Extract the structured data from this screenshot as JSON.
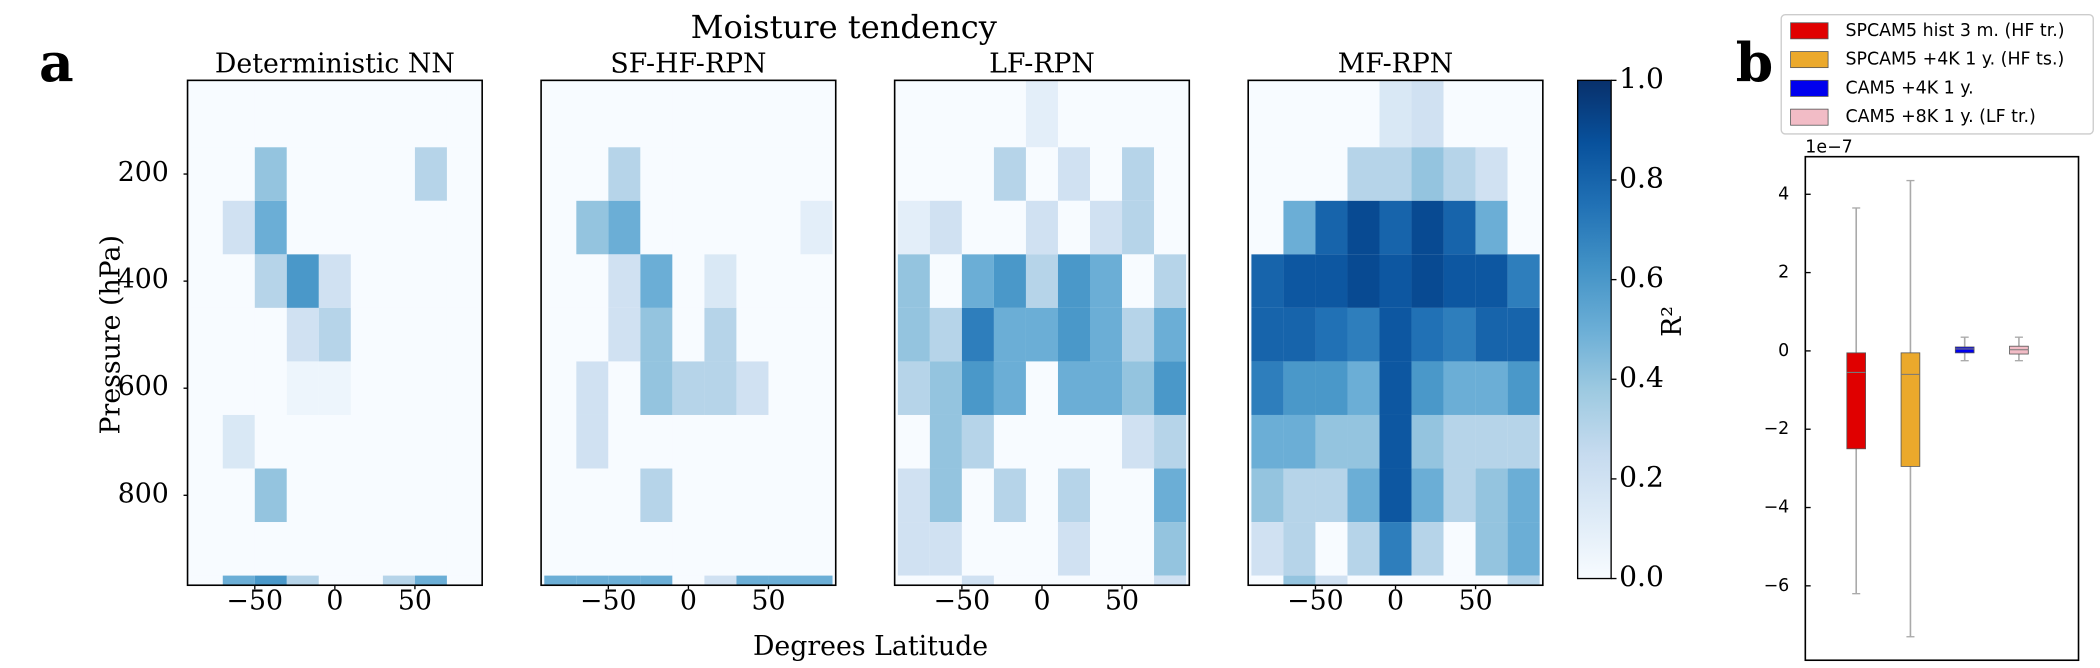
{
  "figure": {
    "title": "Moisture tendency",
    "xlabel": "Degrees Latitude",
    "ylabel": "Pressure (hPa)",
    "panel_labels": [
      "a",
      "b"
    ],
    "colorbar": {
      "label": "R²",
      "lim": [
        0,
        1
      ],
      "ticks": [
        {
          "value": 0,
          "label": "0.0"
        },
        0.2,
        0.4,
        0.6,
        0.8,
        {
          "value": 1,
          "label": "1.0"
        }
      ],
      "colormap": [
        "#f7fbff",
        "#deebf7",
        "#c6dbef",
        "#9ecae1",
        "#6baed6",
        "#4292c6",
        "#2171b5",
        "#08519c",
        "#08306b"
      ]
    }
  },
  "chart_data": [
    {
      "type": "heatmap",
      "title": "Deterministic NN",
      "xbins": [
        -90,
        -70,
        -50,
        -30,
        -10,
        10,
        30,
        50,
        70,
        90
      ],
      "ybins": [
        25,
        150,
        250,
        350,
        450,
        550,
        650,
        750,
        850,
        950,
        968
      ],
      "xlim": [
        -92,
        92
      ],
      "ylim": [
        968,
        25
      ],
      "xticks": [
        {
          "value": -50,
          "label": "−50"
        },
        0,
        50
      ],
      "yticks": [
        200,
        400,
        600,
        800
      ],
      "values": [
        [
          0,
          0,
          0,
          0,
          0,
          0,
          0,
          0,
          0
        ],
        [
          0,
          0,
          0.4,
          0,
          0,
          0,
          0,
          0.3,
          0
        ],
        [
          0,
          0.2,
          0.5,
          0,
          0,
          0,
          0,
          0,
          0
        ],
        [
          0,
          0,
          0.3,
          0.6,
          0.2,
          0,
          0,
          0,
          0
        ],
        [
          0,
          0,
          0,
          0.2,
          0.3,
          0,
          0,
          0,
          0
        ],
        [
          0,
          0,
          0,
          0.05,
          0.05,
          0,
          0,
          0,
          0
        ],
        [
          0,
          0.15,
          0,
          0,
          0,
          0,
          0,
          0,
          0
        ],
        [
          0,
          0,
          0.4,
          0,
          0,
          0,
          0,
          0,
          0
        ],
        [
          0,
          0,
          0,
          0,
          0,
          0,
          0,
          0,
          0
        ],
        [
          0,
          0.5,
          0.6,
          0.3,
          0,
          0,
          0.3,
          0.5,
          0
        ]
      ]
    },
    {
      "type": "heatmap",
      "title": "SF-HF-RPN",
      "xbins": [
        -90,
        -70,
        -50,
        -30,
        -10,
        10,
        30,
        50,
        70,
        90
      ],
      "ybins": [
        25,
        150,
        250,
        350,
        450,
        550,
        650,
        750,
        850,
        950,
        968
      ],
      "xlim": [
        -92,
        92
      ],
      "ylim": [
        968,
        25
      ],
      "xticks": [
        {
          "value": -50,
          "label": "−50"
        },
        0,
        50
      ],
      "values": [
        [
          0,
          0,
          0,
          0,
          0,
          0,
          0,
          0,
          0
        ],
        [
          0,
          0,
          0.3,
          0,
          0,
          0,
          0,
          0,
          0
        ],
        [
          0,
          0.4,
          0.5,
          0,
          0,
          0,
          0,
          0,
          0.1
        ],
        [
          0,
          0,
          0.2,
          0.5,
          0,
          0.15,
          0,
          0,
          0
        ],
        [
          0,
          0,
          0.2,
          0.4,
          0,
          0.3,
          0,
          0,
          0
        ],
        [
          0,
          0.2,
          0,
          0.4,
          0.3,
          0.3,
          0.2,
          0,
          0
        ],
        [
          0,
          0.2,
          0,
          0,
          0,
          0,
          0,
          0,
          0
        ],
        [
          0,
          0,
          0,
          0.3,
          0,
          0,
          0,
          0,
          0
        ],
        [
          0,
          0,
          0,
          0,
          0,
          0,
          0,
          0,
          0
        ],
        [
          0.5,
          0.5,
          0.5,
          0.5,
          0,
          0.2,
          0.5,
          0.5,
          0.5
        ]
      ]
    },
    {
      "type": "heatmap",
      "title": "LF-RPN",
      "xbins": [
        -90,
        -70,
        -50,
        -30,
        -10,
        10,
        30,
        50,
        70,
        90
      ],
      "ybins": [
        25,
        150,
        250,
        350,
        450,
        550,
        650,
        750,
        850,
        950,
        968
      ],
      "xlim": [
        -92,
        92
      ],
      "ylim": [
        968,
        25
      ],
      "xticks": [
        {
          "value": -50,
          "label": "−50"
        },
        0,
        50
      ],
      "values": [
        [
          0,
          0,
          0,
          0,
          0.1,
          0,
          0,
          0,
          0
        ],
        [
          0,
          0,
          0,
          0.3,
          0,
          0.2,
          0,
          0.3,
          0
        ],
        [
          0.1,
          0.2,
          0,
          0,
          0.2,
          0,
          0.2,
          0.3,
          0
        ],
        [
          0.4,
          0,
          0.5,
          0.6,
          0.3,
          0.6,
          0.5,
          0,
          0.3
        ],
        [
          0.4,
          0.3,
          0.7,
          0.5,
          0.5,
          0.6,
          0.5,
          0.3,
          0.5
        ],
        [
          0.3,
          0.4,
          0.6,
          0.5,
          0,
          0.5,
          0.5,
          0.4,
          0.6
        ],
        [
          0,
          0.4,
          0.3,
          0,
          0,
          0,
          0,
          0.2,
          0.3
        ],
        [
          0.2,
          0.4,
          0,
          0.3,
          0,
          0.3,
          0,
          0,
          0.5
        ],
        [
          0.2,
          0.2,
          0,
          0,
          0,
          0.2,
          0,
          0,
          0.4
        ],
        [
          0,
          0,
          0.2,
          0,
          0,
          0,
          0,
          0,
          0.2
        ]
      ]
    },
    {
      "type": "heatmap",
      "title": "MF-RPN",
      "xbins": [
        -90,
        -70,
        -50,
        -30,
        -10,
        10,
        30,
        50,
        70,
        90
      ],
      "ybins": [
        25,
        150,
        250,
        350,
        450,
        550,
        650,
        750,
        850,
        950,
        968
      ],
      "xlim": [
        -92,
        92
      ],
      "ylim": [
        968,
        25
      ],
      "xticks": [
        {
          "value": -50,
          "label": "−50"
        },
        0,
        50
      ],
      "values": [
        [
          0,
          0,
          0,
          0,
          0.15,
          0.2,
          0,
          0,
          0
        ],
        [
          0,
          0,
          0,
          0.3,
          0.3,
          0.4,
          0.3,
          0.2,
          0
        ],
        [
          0,
          0.5,
          0.8,
          0.9,
          0.8,
          0.9,
          0.8,
          0.5,
          0
        ],
        [
          0.8,
          0.85,
          0.85,
          0.9,
          0.85,
          0.9,
          0.85,
          0.85,
          0.7
        ],
        [
          0.8,
          0.8,
          0.75,
          0.7,
          0.85,
          0.75,
          0.7,
          0.8,
          0.8
        ],
        [
          0.7,
          0.6,
          0.6,
          0.5,
          0.85,
          0.6,
          0.5,
          0.5,
          0.6
        ],
        [
          0.5,
          0.5,
          0.4,
          0.4,
          0.85,
          0.4,
          0.3,
          0.3,
          0.3
        ],
        [
          0.4,
          0.3,
          0.3,
          0.5,
          0.85,
          0.5,
          0.3,
          0.4,
          0.5
        ],
        [
          0.2,
          0.3,
          0,
          0.3,
          0.7,
          0.3,
          0,
          0.4,
          0.5
        ],
        [
          0,
          0.4,
          0.2,
          0,
          0,
          0,
          0,
          0,
          0.3
        ]
      ]
    },
    {
      "type": "box",
      "scale_label": "1e−7",
      "ylim": [
        -7.9,
        4.96
      ],
      "yticks": [
        4,
        2,
        0,
        {
          "value": -2,
          "label": "−2"
        },
        {
          "value": -4,
          "label": "−4"
        },
        {
          "value": -6,
          "label": "−6"
        }
      ],
      "series": [
        {
          "name": "SPCAM5 hist 3 m. (HF tr.)",
          "color": "#e00000",
          "values": [
            -6.2,
            -2.5,
            -0.55,
            -0.05,
            3.65
          ]
        },
        {
          "name": "SPCAM5 +4K 1 y. (HF ts.)",
          "color": "#eba92c",
          "values": [
            -7.3,
            -2.95,
            -0.6,
            -0.05,
            4.35
          ]
        },
        {
          "name": "CAM5 +4K 1 y.",
          "color": "#0000ee",
          "values": [
            -0.25,
            -0.05,
            0.05,
            0.1,
            0.35
          ]
        },
        {
          "name": "CAM5 +8K 1 y. (LF tr.)",
          "color": "#f2bcc6",
          "values": [
            -0.25,
            -0.08,
            0.03,
            0.12,
            0.35
          ]
        }
      ]
    }
  ]
}
